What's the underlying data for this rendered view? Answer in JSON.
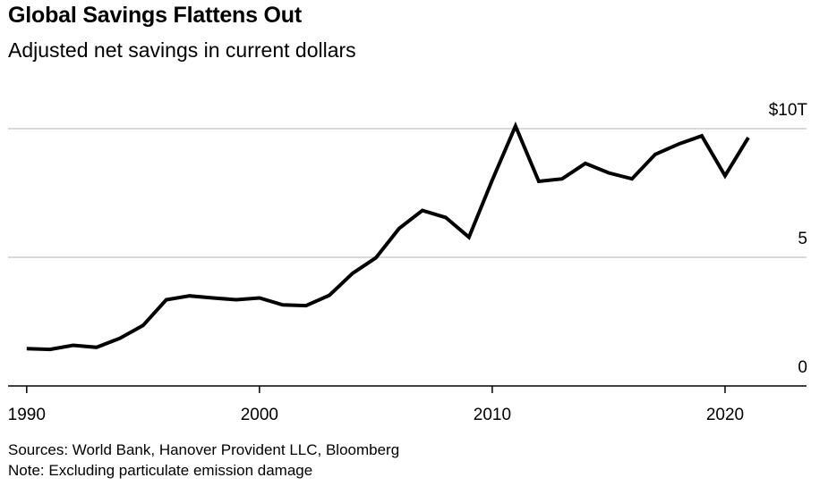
{
  "chart_data": {
    "type": "line",
    "title": "Global Savings Flattens Out",
    "subtitle": "Adjusted net savings in current dollars",
    "xlabel": "",
    "ylabel": "",
    "xlim": [
      1989.2,
      2023.5
    ],
    "ylim": [
      0,
      10
    ],
    "x_ticks": [
      1990,
      2000,
      2010,
      2020
    ],
    "x_tick_labels": [
      "1990",
      "2000",
      "2010",
      "2020"
    ],
    "y_ticks": [
      0,
      5,
      10
    ],
    "y_tick_labels": [
      "0",
      "5",
      "$10T"
    ],
    "grid": true,
    "legend": "none",
    "color": "#000000",
    "series": [
      {
        "x": [
          1990,
          1991,
          1992,
          1993,
          1994,
          1995,
          1996,
          1997,
          1998,
          1999,
          2000,
          2001,
          2002,
          2003,
          2004,
          2005,
          2006,
          2007,
          2008,
          2009,
          2010,
          2011,
          2012,
          2013,
          2014,
          2015,
          2016,
          2017,
          2018,
          2019,
          2020,
          2021
        ],
        "values": [
          1.45,
          1.42,
          1.58,
          1.5,
          1.85,
          2.35,
          3.35,
          3.5,
          3.42,
          3.35,
          3.42,
          3.15,
          3.12,
          3.52,
          4.38,
          4.98,
          6.12,
          6.82,
          6.55,
          5.78,
          8.0,
          10.1,
          7.95,
          8.05,
          8.65,
          8.28,
          8.05,
          9.0,
          9.4,
          9.72,
          8.17,
          9.65
        ]
      }
    ]
  },
  "footer": {
    "source": "Sources: World Bank, Hanover Provident LLC, Bloomberg",
    "note": "Note: Excluding particulate emission damage"
  }
}
